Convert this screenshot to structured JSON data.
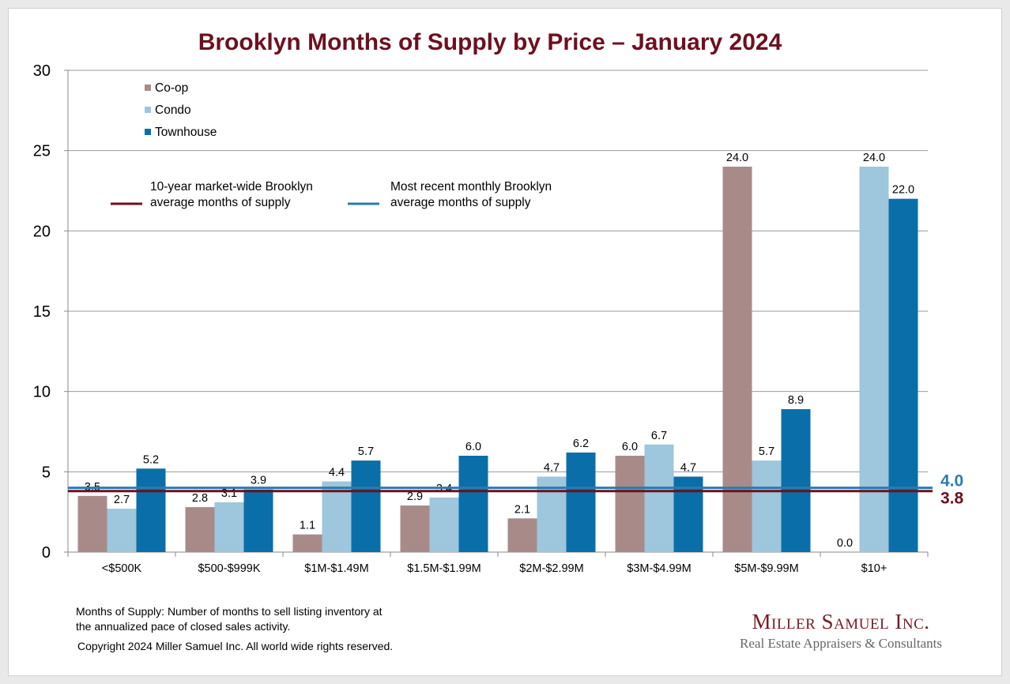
{
  "chart_data": {
    "type": "bar",
    "title": "Brooklyn Months of Supply by Price – January 2024",
    "xlabel": "",
    "ylabel": "",
    "ylim": [
      0,
      30
    ],
    "yticks": [
      0,
      5,
      10,
      15,
      20,
      25,
      30
    ],
    "grid": true,
    "legend_placement": "top-left",
    "categories": [
      "<$500K",
      "$500-$999K",
      "$1M-$1.49M",
      "$1.5M-$1.99M",
      "$2M-$2.99M",
      "$3M-$4.99M",
      "$5M-$9.99M",
      "$10+"
    ],
    "series": [
      {
        "name": "Co-op",
        "color": "#a88b89",
        "values": [
          3.5,
          2.8,
          1.1,
          2.9,
          2.1,
          6.0,
          24.0,
          0.0
        ]
      },
      {
        "name": "Condo",
        "color": "#9ec6dc",
        "values": [
          2.7,
          3.1,
          4.4,
          3.4,
          4.7,
          6.7,
          5.7,
          24.0
        ]
      },
      {
        "name": "Townhouse",
        "color": "#0a6fa8",
        "values": [
          5.2,
          3.9,
          5.7,
          6.0,
          6.2,
          4.7,
          8.9,
          22.0
        ]
      }
    ],
    "reference_lines": [
      {
        "name": "10-year market-wide Brooklyn average months of supply",
        "label_line1": "10-year market-wide Brooklyn",
        "label_line2": "average months of supply",
        "value": 3.8,
        "value_label": "3.8",
        "color": "#6e0f1f"
      },
      {
        "name": "Most recent monthly Brooklyn average months of supply",
        "label_line1": "Most recent monthly Brooklyn",
        "label_line2": "average months of supply",
        "value": 4.0,
        "value_label": "4.0",
        "color": "#2a7bb0"
      }
    ]
  },
  "footer": {
    "note_line1": "Months of Supply: Number of months to sell listing inventory at",
    "note_line2": "the annualized pace of closed sales activity.",
    "copyright": "Copyright 2024 Miller Samuel Inc.  All world wide rights reserved."
  },
  "logo": {
    "name": "Miller Samuel Inc.",
    "tagline": "Real Estate Appraisers & Consultants"
  }
}
